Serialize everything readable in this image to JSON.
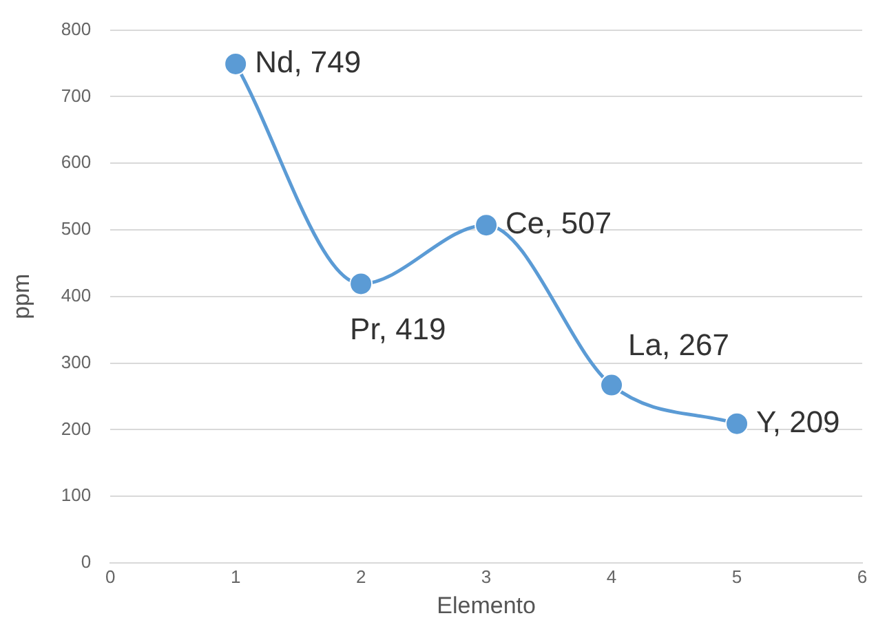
{
  "chart_data": {
    "type": "line",
    "xlabel": "Elemento",
    "ylabel": "ppm",
    "x": [
      1,
      2,
      3,
      4,
      5
    ],
    "series": [
      {
        "color": "#5b9bd5",
        "values": [
          749,
          419,
          507,
          267,
          209
        ],
        "value_labels": [
          "Nd, 749",
          "Pr, 419",
          "Ce, 507",
          "La, 267",
          "Y, 209"
        ]
      }
    ],
    "xlim": [
      0,
      6
    ],
    "xticks": [
      0,
      1,
      2,
      3,
      4,
      5,
      6
    ],
    "ylim": [
      0,
      800
    ],
    "yticks": [
      0,
      100,
      200,
      300,
      400,
      500,
      600,
      700,
      800
    ],
    "grid": "y",
    "legend": false,
    "marker": "circle",
    "line_style": "solid"
  }
}
